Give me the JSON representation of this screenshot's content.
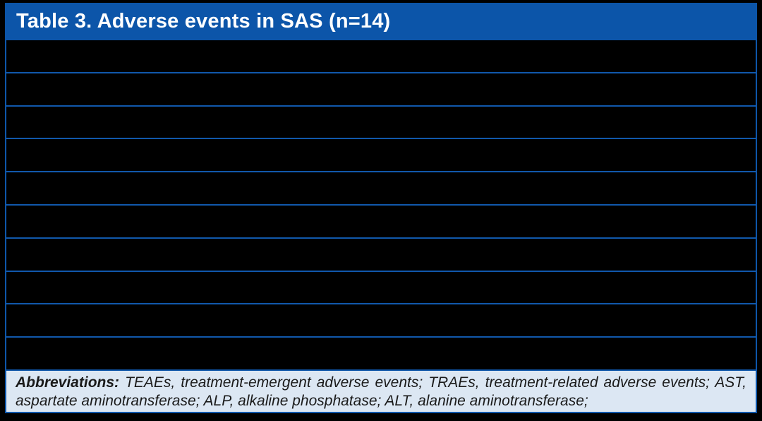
{
  "table": {
    "title": "Table 3. Adverse events in SAS (n=14)",
    "body_rows": [
      "",
      "",
      "",
      "",
      "",
      "",
      "",
      "",
      "",
      ""
    ],
    "footer": {
      "label": "Abbreviations:",
      "text": " TEAEs, treatment-emergent adverse events; TRAEs, treatment-related adverse events; AST, aspartate aminotransferase; ALP, alkaline phosphatase; ALT, alanine aminotransferase;"
    }
  },
  "colors": {
    "page_background": "#000000",
    "title_bar_background": "#0C55A9",
    "title_text": "#FFFFFF",
    "row_divider": "#1158AB",
    "table_border": "#0E56AA",
    "footnote_background": "#DCE7F3",
    "footnote_text": "#1A1A1A"
  }
}
